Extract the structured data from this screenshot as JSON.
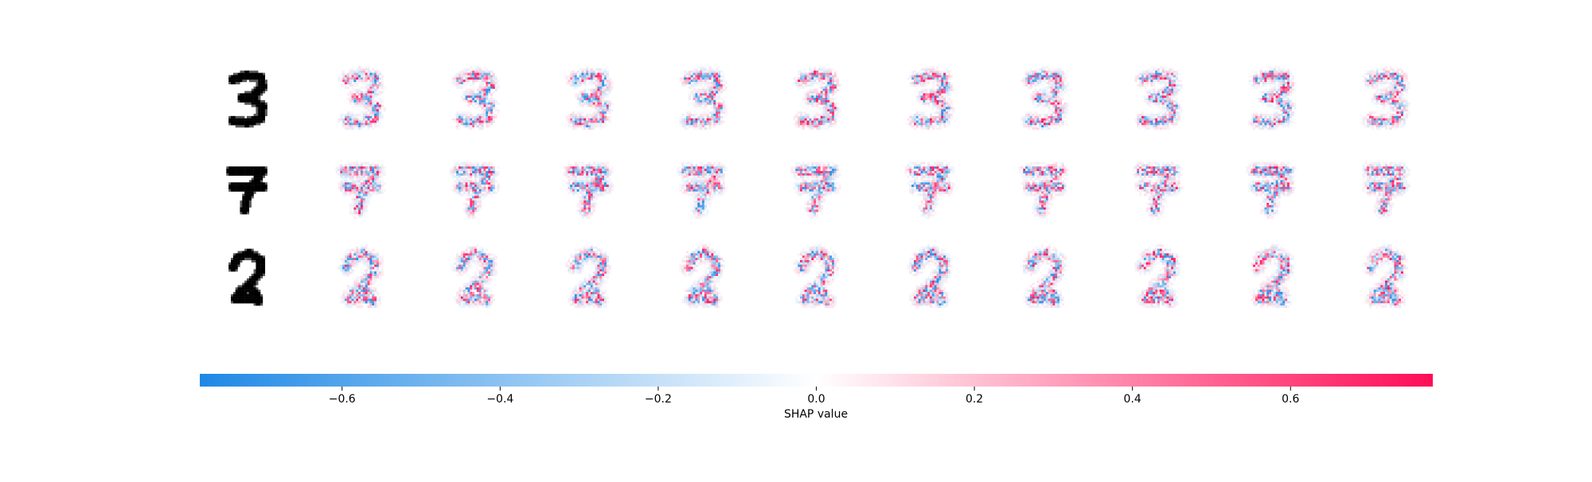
{
  "chart_data": {
    "type": "heatmap",
    "description_rows": [
      "3",
      "7",
      "2"
    ],
    "grid": {
      "rows": 3,
      "cols_per_row": 11,
      "first_col": "input-digit",
      "other_cols": 10
    },
    "colorbar": {
      "label": "SHAP value",
      "vmin": -0.78,
      "vmax": 0.78,
      "ticks": [
        -0.6,
        -0.4,
        -0.2,
        0.0,
        0.2,
        0.4,
        0.6
      ],
      "tick_labels": [
        "−0.6",
        "−0.4",
        "−0.2",
        "0.0",
        "0.2",
        "0.4",
        "0.6"
      ],
      "color_negative": "#1e88e5",
      "color_zero": "#ffffff",
      "color_positive": "#ff0d57"
    }
  }
}
